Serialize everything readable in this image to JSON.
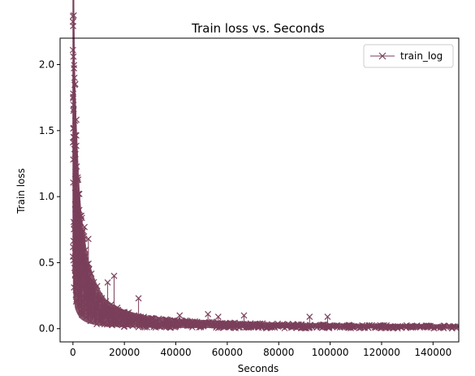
{
  "chart_data": {
    "type": "line",
    "title": "Train loss  vs. Seconds",
    "xlabel": "Seconds",
    "ylabel": "Train loss",
    "xlim": [
      -5000,
      150000
    ],
    "ylim": [
      -0.1,
      2.2
    ],
    "xticks": [
      0,
      20000,
      40000,
      60000,
      80000,
      100000,
      120000,
      140000
    ],
    "xtick_labels": [
      "0",
      "20000",
      "40000",
      "60000",
      "80000",
      "100000",
      "120000",
      "140000"
    ],
    "yticks": [
      0.0,
      0.5,
      1.0,
      1.5,
      2.0
    ],
    "ytick_labels": [
      "0.0",
      "0.5",
      "1.0",
      "1.5",
      "2.0"
    ],
    "grid": false,
    "legend_position": "top-right",
    "marker": "x",
    "color": "#7a3f5a",
    "series": [
      {
        "name": "train_log",
        "x": [
          0,
          150,
          300,
          500,
          700,
          1000,
          1300,
          1700,
          2100,
          2600,
          3200,
          4000,
          5000,
          6000,
          7500,
          9000,
          11000,
          13000,
          16000,
          20000,
          25000,
          30000,
          40000,
          50000,
          60000,
          70000,
          80000,
          90000,
          100000,
          110000,
          120000,
          130000,
          140000,
          149000
        ],
        "y": [
          2.1,
          1.75,
          1.5,
          1.3,
          1.1,
          0.95,
          0.85,
          0.75,
          0.65,
          0.55,
          0.47,
          0.4,
          0.33,
          0.27,
          0.22,
          0.18,
          0.14,
          0.11,
          0.09,
          0.07,
          0.055,
          0.045,
          0.035,
          0.03,
          0.025,
          0.022,
          0.02,
          0.018,
          0.016,
          0.015,
          0.014,
          0.013,
          0.012,
          0.012
        ]
      }
    ],
    "spikes": [
      {
        "x": 0,
        "y": 2.11
      },
      {
        "x": 100,
        "y": 1.78
      },
      {
        "x": 200,
        "y": 1.65
      },
      {
        "x": 300,
        "y": 1.52
      },
      {
        "x": 500,
        "y": 1.45
      },
      {
        "x": 900,
        "y": 1.32
      },
      {
        "x": 2500,
        "y": 1.02
      },
      {
        "x": 4500,
        "y": 0.77
      },
      {
        "x": 6000,
        "y": 0.68
      },
      {
        "x": 13500,
        "y": 0.35
      },
      {
        "x": 16000,
        "y": 0.4
      },
      {
        "x": 25500,
        "y": 0.23
      },
      {
        "x": 41500,
        "y": 0.1
      },
      {
        "x": 52500,
        "y": 0.11
      },
      {
        "x": 56500,
        "y": 0.09
      },
      {
        "x": 66500,
        "y": 0.1
      },
      {
        "x": 92000,
        "y": 0.09
      },
      {
        "x": 99000,
        "y": 0.09
      }
    ]
  }
}
